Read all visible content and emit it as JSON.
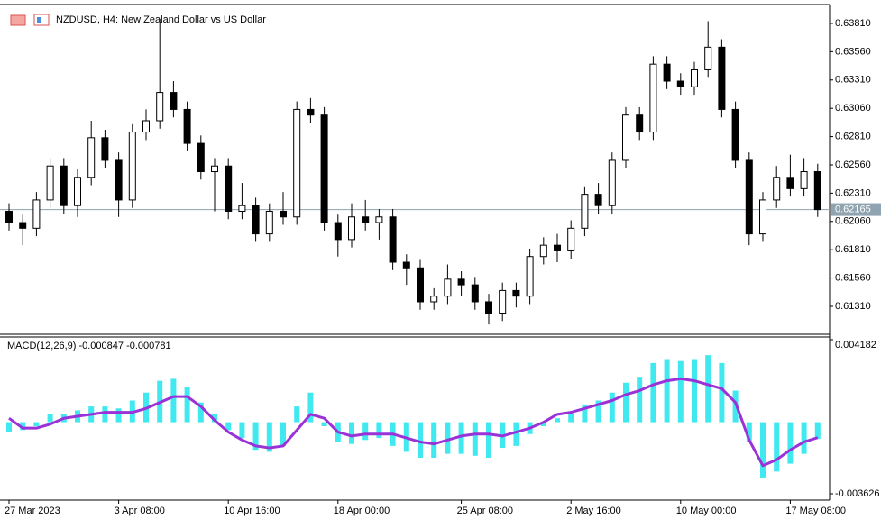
{
  "chart_data": {
    "type": "candlestick",
    "title": "NZDUSD, H4:  New Zealand Dollar vs US Dollar",
    "categories": [
      "27 Mar 2023",
      null,
      null,
      null,
      null,
      null,
      null,
      null,
      "3 Apr 08:00",
      null,
      null,
      null,
      null,
      null,
      null,
      null,
      "10 Apr 16:00",
      null,
      null,
      null,
      null,
      null,
      null,
      null,
      "18 Apr 00:00",
      null,
      null,
      null,
      null,
      null,
      null,
      null,
      null,
      "25 Apr 08:00",
      null,
      null,
      null,
      null,
      null,
      null,
      null,
      "2 May 16:00",
      null,
      null,
      null,
      null,
      null,
      null,
      null,
      "10 May 00:00",
      null,
      null,
      null,
      null,
      null,
      null,
      null,
      "17 May 08:00",
      null,
      null
    ],
    "open": [
      0.6215,
      0.6205,
      0.62,
      0.6225,
      0.6255,
      0.622,
      0.6245,
      0.628,
      0.626,
      0.6225,
      0.6285,
      0.6295,
      0.632,
      0.6305,
      0.6275,
      0.625,
      0.6255,
      0.6215,
      0.622,
      0.6195,
      0.6215,
      0.621,
      0.6305,
      0.63,
      0.6205,
      0.619,
      0.621,
      0.6205,
      0.621,
      0.617,
      0.6165,
      0.6135,
      0.614,
      0.6155,
      0.615,
      0.6135,
      0.6125,
      0.6145,
      0.614,
      0.6175,
      0.6185,
      0.618,
      0.62,
      0.623,
      0.622,
      0.626,
      0.63,
      0.6285,
      0.6345,
      0.633,
      0.6325,
      0.634,
      0.636,
      0.6305,
      0.626,
      0.6195,
      0.6225,
      0.6245,
      0.6235,
      0.625
    ],
    "high": [
      0.6222,
      0.6212,
      0.6232,
      0.6262,
      0.6262,
      0.6252,
      0.6295,
      0.6287,
      0.6267,
      0.6292,
      0.6305,
      0.6385,
      0.633,
      0.6312,
      0.6282,
      0.6262,
      0.6262,
      0.624,
      0.6227,
      0.6222,
      0.6232,
      0.6312,
      0.6315,
      0.6307,
      0.6212,
      0.6222,
      0.6225,
      0.6217,
      0.6217,
      0.6177,
      0.6172,
      0.6147,
      0.6168,
      0.6162,
      0.6157,
      0.6142,
      0.6152,
      0.6152,
      0.6182,
      0.6192,
      0.6195,
      0.6207,
      0.6237,
      0.624,
      0.6267,
      0.6307,
      0.6307,
      0.6352,
      0.6352,
      0.6337,
      0.6347,
      0.6383,
      0.6367,
      0.6312,
      0.6267,
      0.6232,
      0.6255,
      0.6265,
      0.6262,
      0.6257
    ],
    "low": [
      0.6198,
      0.6185,
      0.6193,
      0.6218,
      0.6213,
      0.621,
      0.6238,
      0.6253,
      0.621,
      0.6218,
      0.6278,
      0.6288,
      0.6298,
      0.6268,
      0.6243,
      0.6215,
      0.6208,
      0.6208,
      0.6188,
      0.6188,
      0.6203,
      0.6203,
      0.6293,
      0.6198,
      0.6175,
      0.6183,
      0.6198,
      0.619,
      0.6163,
      0.615,
      0.6128,
      0.6128,
      0.6133,
      0.614,
      0.6128,
      0.6115,
      0.6118,
      0.613,
      0.6133,
      0.6168,
      0.617,
      0.6173,
      0.6193,
      0.6213,
      0.6213,
      0.6253,
      0.6278,
      0.6278,
      0.6323,
      0.6318,
      0.6318,
      0.6333,
      0.6298,
      0.6253,
      0.6185,
      0.6188,
      0.6218,
      0.6228,
      0.6228,
      0.621
    ],
    "close": [
      0.6205,
      0.62,
      0.6225,
      0.6255,
      0.622,
      0.6245,
      0.628,
      0.626,
      0.6225,
      0.6285,
      0.6295,
      0.632,
      0.6305,
      0.6275,
      0.625,
      0.6255,
      0.6215,
      0.622,
      0.6195,
      0.6215,
      0.621,
      0.6305,
      0.63,
      0.6205,
      0.619,
      0.621,
      0.6205,
      0.621,
      0.617,
      0.6165,
      0.6135,
      0.614,
      0.6155,
      0.615,
      0.6135,
      0.6125,
      0.6145,
      0.614,
      0.6175,
      0.6185,
      0.618,
      0.62,
      0.623,
      0.622,
      0.626,
      0.63,
      0.6285,
      0.6345,
      0.633,
      0.6325,
      0.634,
      0.636,
      0.6305,
      0.626,
      0.6195,
      0.6225,
      0.6245,
      0.6235,
      0.625,
      0.62165
    ],
    "up_fill": "#ffffff",
    "down_fill": "#000000",
    "candle_stroke": "#000000",
    "ylim": [
      0.61087,
      0.63953
    ],
    "yticks": [
      {
        "value": 0.6381,
        "label": "0.63810"
      },
      {
        "value": 0.6356,
        "label": "0.63560"
      },
      {
        "value": 0.6331,
        "label": "0.63310"
      },
      {
        "value": 0.6306,
        "label": "0.63060"
      },
      {
        "value": 0.6281,
        "label": "0.62810"
      },
      {
        "value": 0.6256,
        "label": "0.62560"
      },
      {
        "value": 0.6231,
        "label": "0.62310"
      },
      {
        "value": 0.6206,
        "label": "0.62060"
      },
      {
        "value": 0.6181,
        "label": "0.61810"
      },
      {
        "value": 0.6156,
        "label": "0.61560"
      },
      {
        "value": 0.6131,
        "label": "0.61310"
      }
    ],
    "last_price": 0.62165,
    "macd": {
      "title": "MACD(12,26,9) -0.000847 -0.000781",
      "histogram": {
        "color": "#40e8f0",
        "values": [
          -0.0005,
          -0.0004,
          -0.0002,
          0.0004,
          0.0004,
          0.0006,
          0.0008,
          0.0008,
          0.0007,
          0.0011,
          0.0015,
          0.0021,
          0.0022,
          0.0018,
          0.001,
          0.0004,
          -0.0004,
          -0.0008,
          -0.0014,
          -0.0015,
          -0.0012,
          0.0008,
          0.0015,
          -0.0002,
          -0.001,
          -0.0011,
          -0.0009,
          -0.0008,
          -0.0012,
          -0.0015,
          -0.0018,
          -0.0018,
          -0.0016,
          -0.0016,
          -0.0017,
          -0.0018,
          -0.0013,
          -0.0012,
          -0.0006,
          -0.0002,
          0.0002,
          0.0004,
          0.0009,
          0.0011,
          0.0015,
          0.002,
          0.0023,
          0.003,
          0.0032,
          0.0031,
          0.0032,
          0.0034,
          0.003,
          0.0016,
          -0.001,
          -0.0028,
          -0.0025,
          -0.0021,
          -0.0016,
          -0.000847
        ]
      },
      "signal": {
        "color": "#9a32d8",
        "values": [
          0.0002,
          -0.0003,
          -0.0003,
          -0.0001,
          0.0002,
          0.0003,
          0.0004,
          0.0005,
          0.0005,
          0.0005,
          0.0007,
          0.001,
          0.0013,
          0.0013,
          0.0008,
          0.0001,
          -0.0005,
          -0.0009,
          -0.0012,
          -0.0013,
          -0.0012,
          -0.0004,
          0.0004,
          0.0002,
          -0.0005,
          -0.0007,
          -0.0006,
          -0.0006,
          -0.0006,
          -0.0008,
          -0.001,
          -0.0011,
          -0.0009,
          -0.0007,
          -0.0006,
          -0.0006,
          -0.0007,
          -0.0005,
          -0.0003,
          0.0,
          0.0004,
          0.0005,
          0.0007,
          0.0009,
          0.0011,
          0.0014,
          0.0016,
          0.0019,
          0.0021,
          0.0022,
          0.0021,
          0.0019,
          0.0017,
          0.001,
          -0.0009,
          -0.0022,
          -0.0019,
          -0.0014,
          -0.001,
          -0.000781
        ]
      },
      "ylim": [
        -0.003626,
        0.004182
      ],
      "yticks": [
        0.004182,
        -0.003626
      ]
    }
  }
}
